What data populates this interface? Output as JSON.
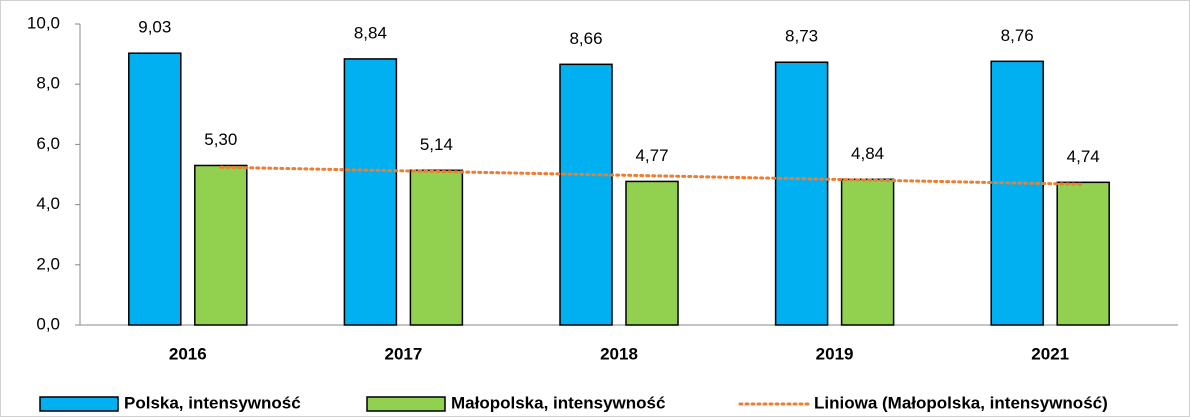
{
  "chart_data": {
    "type": "bar",
    "categories": [
      "2016",
      "2017",
      "2018",
      "2019",
      "2021"
    ],
    "series": [
      {
        "name": "Polska, intensywność",
        "color": "#00b0f0",
        "values": [
          9.03,
          8.84,
          8.66,
          8.73,
          8.76
        ],
        "value_labels": [
          "9,03",
          "8,84",
          "8,66",
          "8,73",
          "8,76"
        ]
      },
      {
        "name": "Małopolska, intensywność",
        "color": "#92d050",
        "values": [
          5.3,
          5.14,
          4.77,
          4.84,
          4.74
        ],
        "value_labels": [
          "5,30",
          "5,14",
          "4,77",
          "4,84",
          "4,74"
        ],
        "trendline": {
          "type": "linear",
          "name": "Liniowa (Małopolska, intensywność)",
          "color": "#ed7d31"
        }
      }
    ],
    "ylim": [
      0,
      10
    ],
    "yticks": [
      {
        "value": 0,
        "label": "0,0"
      },
      {
        "value": 2,
        "label": "2,0"
      },
      {
        "value": 4,
        "label": "4,0"
      },
      {
        "value": 6,
        "label": "6,0"
      },
      {
        "value": 8,
        "label": "8,0"
      },
      {
        "value": 10,
        "label": "10,0"
      }
    ],
    "grid": false,
    "legend": "bottom"
  }
}
